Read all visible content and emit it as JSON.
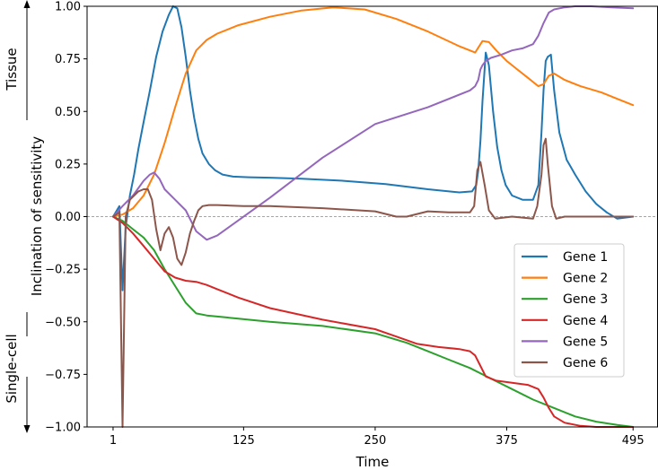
{
  "chart_data": {
    "type": "line",
    "title": "",
    "xlabel": "Time",
    "ylabel": "Inclination of sensitivity",
    "xlim": [
      1,
      495
    ],
    "ylim": [
      -1.0,
      1.0
    ],
    "x_ticks": [
      1,
      125,
      250,
      375,
      495
    ],
    "y_ticks": [
      1.0,
      0.75,
      0.5,
      0.25,
      0.0,
      -0.25,
      -0.5,
      -0.75,
      -1.0
    ],
    "x_tick_labels": [
      "1",
      "125",
      "250",
      "375",
      "495"
    ],
    "y_tick_labels": [
      "1.00",
      "0.75",
      "0.50",
      "0.25",
      "0.00",
      "−0.25",
      "−0.50",
      "−0.75",
      "−1.00"
    ],
    "grid": false,
    "reference_line": {
      "y": 0.0,
      "style": "dashed",
      "color": "#888888"
    },
    "side_annotations": {
      "top": "Tissue",
      "bottom": "Single-cell"
    },
    "legend": {
      "position": "lower-right"
    },
    "series": [
      {
        "name": "Gene 1",
        "color": "#1f77b4",
        "x": [
          1,
          7,
          10,
          13,
          17,
          21,
          25,
          30,
          36,
          42,
          48,
          54,
          58,
          62,
          66,
          70,
          74,
          78,
          82,
          86,
          92,
          98,
          105,
          115,
          130,
          150,
          180,
          220,
          260,
          300,
          330,
          342,
          346,
          348,
          350,
          352,
          355,
          358,
          362,
          366,
          370,
          374,
          380,
          390,
          400,
          405,
          408,
          410,
          412,
          414,
          417,
          420,
          425,
          432,
          440,
          450,
          460,
          470,
          480,
          495
        ],
        "y": [
          0.0,
          0.05,
          -0.35,
          -0.05,
          0.1,
          0.2,
          0.32,
          0.45,
          0.6,
          0.76,
          0.88,
          0.96,
          1.0,
          0.99,
          0.9,
          0.76,
          0.6,
          0.47,
          0.37,
          0.3,
          0.25,
          0.22,
          0.2,
          0.19,
          0.187,
          0.185,
          0.18,
          0.17,
          0.155,
          0.13,
          0.115,
          0.12,
          0.15,
          0.22,
          0.36,
          0.55,
          0.78,
          0.72,
          0.5,
          0.33,
          0.22,
          0.15,
          0.1,
          0.08,
          0.08,
          0.15,
          0.4,
          0.6,
          0.74,
          0.76,
          0.77,
          0.6,
          0.4,
          0.27,
          0.2,
          0.12,
          0.06,
          0.02,
          -0.01,
          0.0
        ]
      },
      {
        "name": "Gene 2",
        "color": "#ff7f0e",
        "x": [
          1,
          10,
          20,
          30,
          40,
          50,
          60,
          70,
          80,
          90,
          100,
          120,
          150,
          180,
          210,
          240,
          270,
          300,
          330,
          345,
          352,
          358,
          365,
          375,
          385,
          395,
          405,
          410,
          415,
          420,
          430,
          445,
          465,
          480,
          495
        ],
        "y": [
          0.0,
          0.01,
          0.04,
          0.1,
          0.2,
          0.35,
          0.52,
          0.68,
          0.79,
          0.84,
          0.87,
          0.91,
          0.95,
          0.98,
          0.995,
          0.985,
          0.94,
          0.88,
          0.81,
          0.78,
          0.835,
          0.83,
          0.79,
          0.74,
          0.7,
          0.66,
          0.62,
          0.63,
          0.67,
          0.68,
          0.65,
          0.62,
          0.59,
          0.56,
          0.53
        ]
      },
      {
        "name": "Gene 3",
        "color": "#2ca02c",
        "x": [
          1,
          10,
          20,
          30,
          40,
          50,
          60,
          70,
          80,
          90,
          100,
          120,
          150,
          200,
          250,
          280,
          300,
          320,
          340,
          360,
          380,
          400,
          420,
          440,
          460,
          480,
          495
        ],
        "y": [
          0.0,
          -0.02,
          -0.06,
          -0.1,
          -0.16,
          -0.25,
          -0.33,
          -0.41,
          -0.46,
          -0.47,
          -0.475,
          -0.485,
          -0.5,
          -0.52,
          -0.555,
          -0.6,
          -0.64,
          -0.68,
          -0.72,
          -0.77,
          -0.82,
          -0.87,
          -0.91,
          -0.95,
          -0.975,
          -0.99,
          -1.0
        ]
      },
      {
        "name": "Gene 4",
        "color": "#d62728",
        "x": [
          1,
          10,
          20,
          30,
          40,
          50,
          60,
          70,
          80,
          90,
          100,
          120,
          150,
          200,
          250,
          270,
          290,
          310,
          330,
          340,
          345,
          350,
          355,
          365,
          380,
          395,
          405,
          410,
          415,
          420,
          430,
          445,
          460,
          480,
          495
        ],
        "y": [
          0.0,
          -0.03,
          -0.08,
          -0.14,
          -0.2,
          -0.26,
          -0.29,
          -0.305,
          -0.31,
          -0.325,
          -0.345,
          -0.385,
          -0.435,
          -0.49,
          -0.535,
          -0.57,
          -0.605,
          -0.62,
          -0.63,
          -0.64,
          -0.66,
          -0.71,
          -0.76,
          -0.78,
          -0.79,
          -0.8,
          -0.82,
          -0.86,
          -0.91,
          -0.95,
          -0.98,
          -0.995,
          -1.0,
          -1.0,
          -1.0
        ]
      },
      {
        "name": "Gene 5",
        "color": "#9467bd",
        "x": [
          1,
          10,
          20,
          30,
          36,
          40,
          45,
          50,
          60,
          70,
          80,
          90,
          100,
          150,
          200,
          250,
          300,
          340,
          345,
          348,
          350,
          352,
          355,
          360,
          370,
          380,
          390,
          400,
          405,
          410,
          415,
          420,
          430,
          440,
          455,
          475,
          495
        ],
        "y": [
          0.0,
          0.05,
          0.1,
          0.17,
          0.2,
          0.21,
          0.18,
          0.13,
          0.08,
          0.03,
          -0.07,
          -0.11,
          -0.09,
          0.09,
          0.28,
          0.44,
          0.52,
          0.6,
          0.62,
          0.65,
          0.7,
          0.72,
          0.74,
          0.755,
          0.77,
          0.79,
          0.8,
          0.82,
          0.86,
          0.92,
          0.97,
          0.985,
          0.995,
          1.0,
          1.0,
          0.995,
          0.99
        ]
      },
      {
        "name": "Gene 6",
        "color": "#8c564b",
        "x": [
          1,
          7,
          10,
          13,
          17,
          21,
          25,
          30,
          34,
          38,
          42,
          46,
          50,
          54,
          58,
          62,
          66,
          70,
          74,
          78,
          82,
          86,
          92,
          100,
          125,
          150,
          200,
          250,
          270,
          280,
          300,
          320,
          340,
          344,
          347,
          350,
          354,
          358,
          364,
          380,
          400,
          404,
          408,
          410,
          412,
          414,
          418,
          422,
          430,
          450,
          470,
          495
        ],
        "y": [
          0.0,
          0.02,
          -1.0,
          0.0,
          0.08,
          0.1,
          0.12,
          0.13,
          0.13,
          0.08,
          -0.06,
          -0.16,
          -0.08,
          -0.05,
          -0.1,
          -0.2,
          -0.23,
          -0.17,
          -0.08,
          -0.02,
          0.03,
          0.05,
          0.055,
          0.055,
          0.05,
          0.05,
          0.04,
          0.025,
          0.0,
          0.0,
          0.025,
          0.02,
          0.02,
          0.05,
          0.22,
          0.26,
          0.15,
          0.03,
          -0.01,
          0.0,
          -0.01,
          0.05,
          0.2,
          0.34,
          0.37,
          0.25,
          0.05,
          -0.01,
          0.0,
          0.0,
          0.0,
          0.0
        ]
      }
    ]
  }
}
